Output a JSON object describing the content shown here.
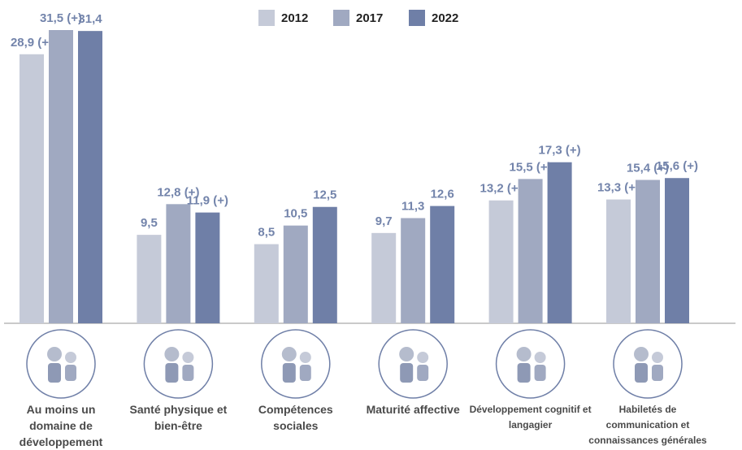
{
  "chart_data": {
    "type": "bar",
    "categories": [
      "Au moins un domaine de développement",
      "Santé physique et bien-être",
      "Compétences sociales",
      "Maturité affective",
      "Développement cognitif et langagier",
      "Habiletés de communication et connaissances générales"
    ],
    "series": [
      {
        "name": "2012",
        "color": "#c5cad8",
        "values": [
          28.9,
          9.5,
          8.5,
          9.7,
          13.2,
          13.3
        ],
        "value_labels": [
          "28,9 (+)",
          "9,5",
          "8,5",
          "9,7",
          "13,2 (+)",
          "13,3 (+)"
        ]
      },
      {
        "name": "2017",
        "color": "#a0a9c1",
        "values": [
          31.5,
          12.8,
          10.5,
          11.3,
          15.5,
          15.4
        ],
        "value_labels": [
          "31,5 (+)",
          "12,8 (+)",
          "10,5",
          "11,3",
          "15,5 (+)",
          "15,4 (+)"
        ]
      },
      {
        "name": "2022",
        "color": "#6f7fa7",
        "values": [
          31.4,
          11.9,
          12.5,
          12.6,
          17.3,
          15.6
        ],
        "value_labels": [
          "31,4",
          "11,9 (+)",
          "12,5",
          "12,6",
          "17,3 (+)",
          "15,6 (+)"
        ]
      }
    ]
  }
}
